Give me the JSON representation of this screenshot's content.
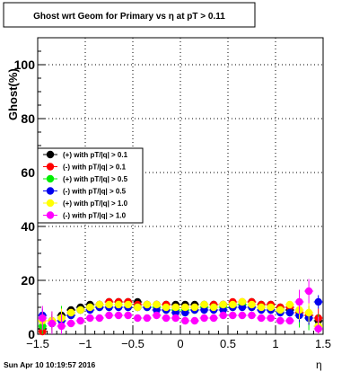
{
  "chart_data": {
    "type": "scatter",
    "title": "Ghost wrt Geom for Primary vs   η at pT > 0.11",
    "xlabel": "η",
    "ylabel": "Ghost(%)",
    "xlim": [
      -1.5,
      1.5
    ],
    "ylim": [
      0,
      110
    ],
    "x_ticks": [
      -1.5,
      -1,
      -0.5,
      0,
      0.5,
      1,
      1.5
    ],
    "x_tick_labels": [
      "−1.5",
      "−1",
      "−0.5",
      "0",
      "0.5",
      "1",
      "1.5"
    ],
    "y_ticks": [
      0,
      20,
      40,
      60,
      80,
      100
    ],
    "y_tick_labels": [
      "0",
      "20",
      "40",
      "60",
      "80",
      "100"
    ],
    "grid": true,
    "legend_position": "middle-left",
    "timestamp": "Sun Apr 10 10:19:57 2016",
    "x": [
      -1.45,
      -1.35,
      -1.25,
      -1.15,
      -1.05,
      -0.95,
      -0.85,
      -0.75,
      -0.65,
      -0.55,
      -0.45,
      -0.35,
      -0.25,
      -0.15,
      -0.05,
      0.05,
      0.15,
      0.25,
      0.35,
      0.45,
      0.55,
      0.65,
      0.75,
      0.85,
      0.95,
      1.05,
      1.15,
      1.25,
      1.35,
      1.45
    ],
    "series": [
      {
        "name": "(+) with pT/|q| > 0.1",
        "color": "#000000",
        "values": [
          2,
          5,
          7,
          9,
          10,
          11,
          11,
          12,
          12,
          12,
          12,
          11,
          11,
          11,
          11,
          11,
          11,
          11,
          11,
          11,
          11,
          11,
          12,
          11,
          11,
          10,
          9,
          8,
          7,
          5
        ]
      },
      {
        "name": "(-) with pT/|q| > 0.1",
        "color": "#ff0000",
        "values": [
          1,
          4,
          6,
          8,
          9,
          10,
          11,
          12,
          12,
          12,
          11,
          11,
          11,
          11,
          10,
          10,
          10,
          10,
          11,
          11,
          12,
          12,
          12,
          11,
          11,
          10,
          10,
          8,
          7,
          6
        ]
      },
      {
        "name": "(+) with pT/|q| > 0.5",
        "color": "#00ee00",
        "values": [
          3,
          4,
          6,
          7,
          9,
          10,
          10,
          10,
          11,
          10,
          10,
          10,
          10,
          9,
          9,
          9,
          9,
          10,
          10,
          10,
          10,
          11,
          10,
          10,
          9,
          9,
          8,
          7,
          6,
          3
        ]
      },
      {
        "name": "(-) with pT/|q| > 0.5",
        "color": "#0000ee",
        "values": [
          7,
          4,
          5,
          7,
          9,
          9,
          10,
          10,
          10,
          10,
          10,
          10,
          9,
          9,
          8,
          8,
          9,
          9,
          9,
          9,
          10,
          10,
          10,
          9,
          9,
          8,
          8,
          7,
          6,
          12
        ]
      },
      {
        "name": "(+) with pT/|q| > 1.0",
        "color": "#ffff00",
        "values": [
          5,
          5,
          6,
          8,
          9,
          10,
          11,
          11,
          11,
          11,
          10,
          11,
          11,
          10,
          10,
          10,
          10,
          11,
          10,
          11,
          11,
          12,
          11,
          10,
          10,
          9,
          11,
          9,
          8,
          3
        ]
      },
      {
        "name": "(-) with pT/|q| > 1.0",
        "color": "#ff00ff",
        "values": [
          6,
          4,
          3,
          4,
          5,
          6,
          6,
          7,
          7,
          7,
          6,
          6,
          7,
          6,
          6,
          5,
          5,
          6,
          6,
          7,
          7,
          7,
          7,
          6,
          6,
          5,
          5,
          12,
          16,
          2
        ]
      }
    ]
  }
}
